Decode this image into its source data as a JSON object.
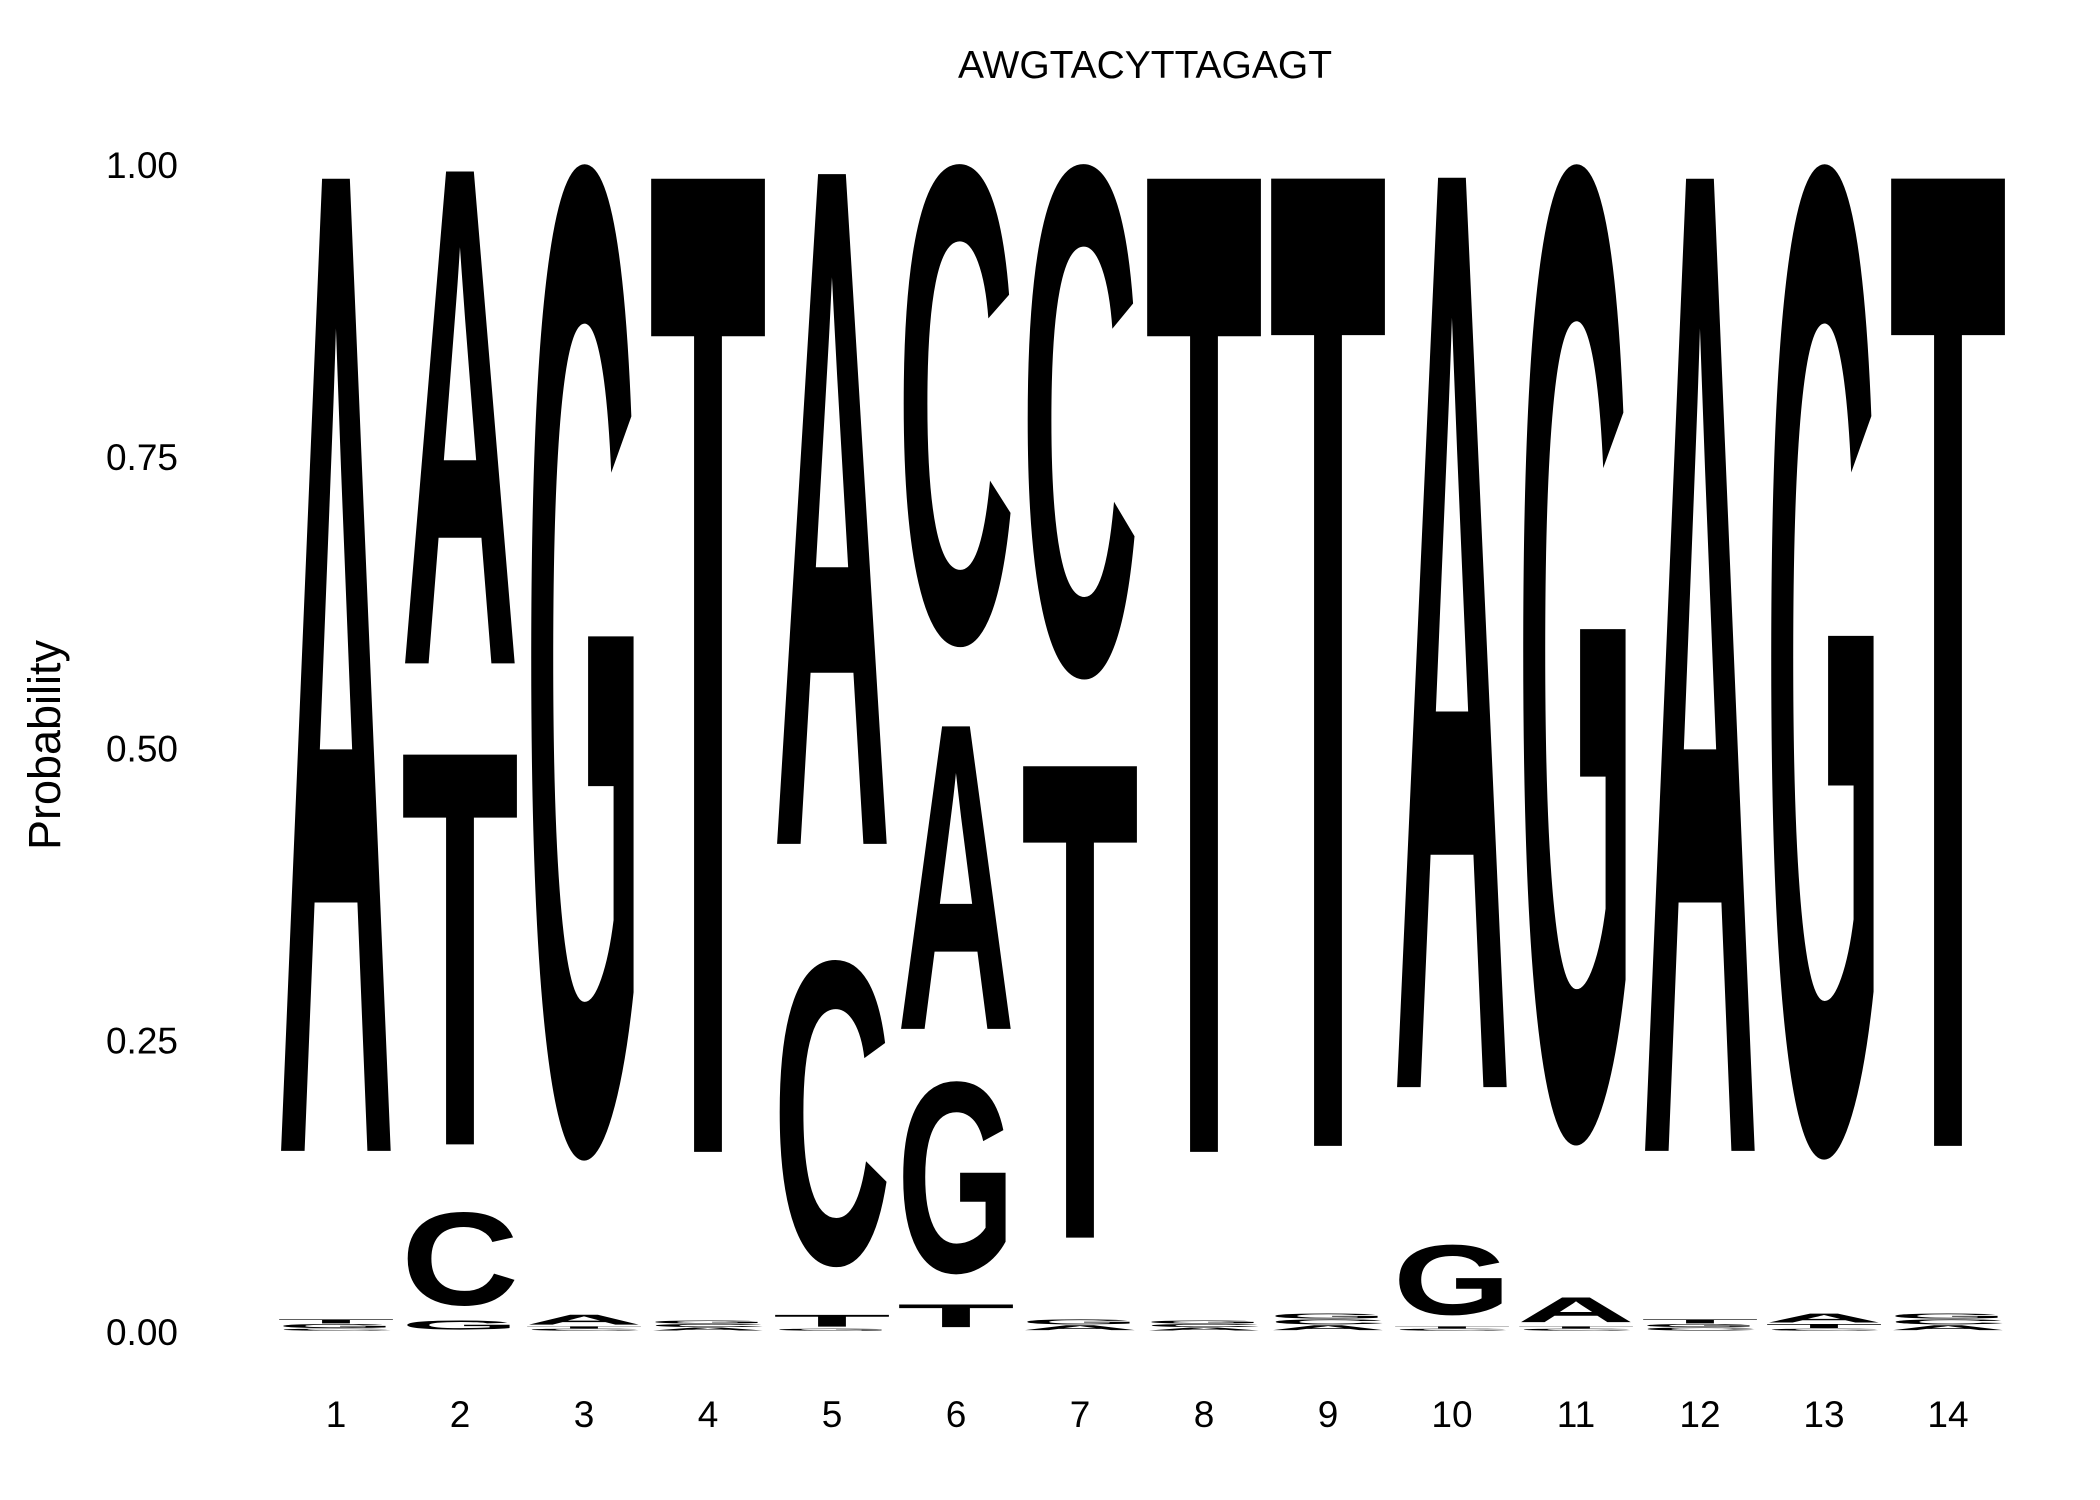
{
  "chart_data": {
    "type": "sequence-logo",
    "title": "AWGTACYTTAGAGT",
    "ylabel": "Probability",
    "xlabel": "",
    "ylim": [
      0,
      1
    ],
    "y_ticks": [
      "0.00",
      "0.25",
      "0.50",
      "0.75",
      "1.00"
    ],
    "positions": [
      "1",
      "2",
      "3",
      "4",
      "5",
      "6",
      "7",
      "8",
      "9",
      "10",
      "11",
      "12",
      "13",
      "14"
    ],
    "colors": {
      "A": "#00cc00",
      "C": "#0000ff",
      "G": "#ffa500",
      "T": "#ee2e2e"
    },
    "stacks": [
      [
        {
          "base": "C",
          "p": 0.002
        },
        {
          "base": "G",
          "p": 0.004
        },
        {
          "base": "T",
          "p": 0.004
        },
        {
          "base": "A",
          "p": 0.99
        }
      ],
      [
        {
          "base": "G",
          "p": 0.009
        },
        {
          "base": "C",
          "p": 0.093
        },
        {
          "base": "T",
          "p": 0.397
        },
        {
          "base": "A",
          "p": 0.501
        }
      ],
      [
        {
          "base": "C",
          "p": 0.002
        },
        {
          "base": "T",
          "p": 0.002
        },
        {
          "base": "A",
          "p": 0.01
        },
        {
          "base": "G",
          "p": 0.986
        }
      ],
      [
        {
          "base": "A",
          "p": 0.003
        },
        {
          "base": "C",
          "p": 0.003
        },
        {
          "base": "G",
          "p": 0.003
        },
        {
          "base": "T",
          "p": 0.991
        }
      ],
      [
        {
          "base": "G",
          "p": 0.002
        },
        {
          "base": "T",
          "p": 0.012
        },
        {
          "base": "C",
          "p": 0.304
        },
        {
          "base": "A",
          "p": 0.682
        }
      ],
      [
        {
          "base": "T",
          "p": 0.023
        },
        {
          "base": "G",
          "p": 0.191
        },
        {
          "base": "A",
          "p": 0.308
        },
        {
          "base": "C",
          "p": 0.478
        }
      ],
      [
        {
          "base": "A",
          "p": 0.005
        },
        {
          "base": "G",
          "p": 0.005
        },
        {
          "base": "T",
          "p": 0.48
        },
        {
          "base": "C",
          "p": 0.51
        }
      ],
      [
        {
          "base": "A",
          "p": 0.003
        },
        {
          "base": "C",
          "p": 0.003
        },
        {
          "base": "G",
          "p": 0.003
        },
        {
          "base": "T",
          "p": 0.991
        }
      ],
      [
        {
          "base": "A",
          "p": 0.005
        },
        {
          "base": "C",
          "p": 0.005
        },
        {
          "base": "G",
          "p": 0.005
        },
        {
          "base": "T",
          "p": 0.985
        }
      ],
      [
        {
          "base": "C",
          "p": 0.002
        },
        {
          "base": "T",
          "p": 0.002
        },
        {
          "base": "G",
          "p": 0.07
        },
        {
          "base": "A",
          "p": 0.926
        }
      ],
      [
        {
          "base": "C",
          "p": 0.002
        },
        {
          "base": "T",
          "p": 0.002
        },
        {
          "base": "A",
          "p": 0.025
        },
        {
          "base": "G",
          "p": 0.971
        }
      ],
      [
        {
          "base": "C",
          "p": 0.003
        },
        {
          "base": "G",
          "p": 0.003
        },
        {
          "base": "T",
          "p": 0.004
        },
        {
          "base": "A",
          "p": 0.99
        }
      ],
      [
        {
          "base": "C",
          "p": 0.002
        },
        {
          "base": "T",
          "p": 0.004
        },
        {
          "base": "A",
          "p": 0.009
        },
        {
          "base": "G",
          "p": 0.985
        }
      ],
      [
        {
          "base": "A",
          "p": 0.005
        },
        {
          "base": "C",
          "p": 0.005
        },
        {
          "base": "G",
          "p": 0.005
        },
        {
          "base": "T",
          "p": 0.985
        }
      ]
    ]
  }
}
